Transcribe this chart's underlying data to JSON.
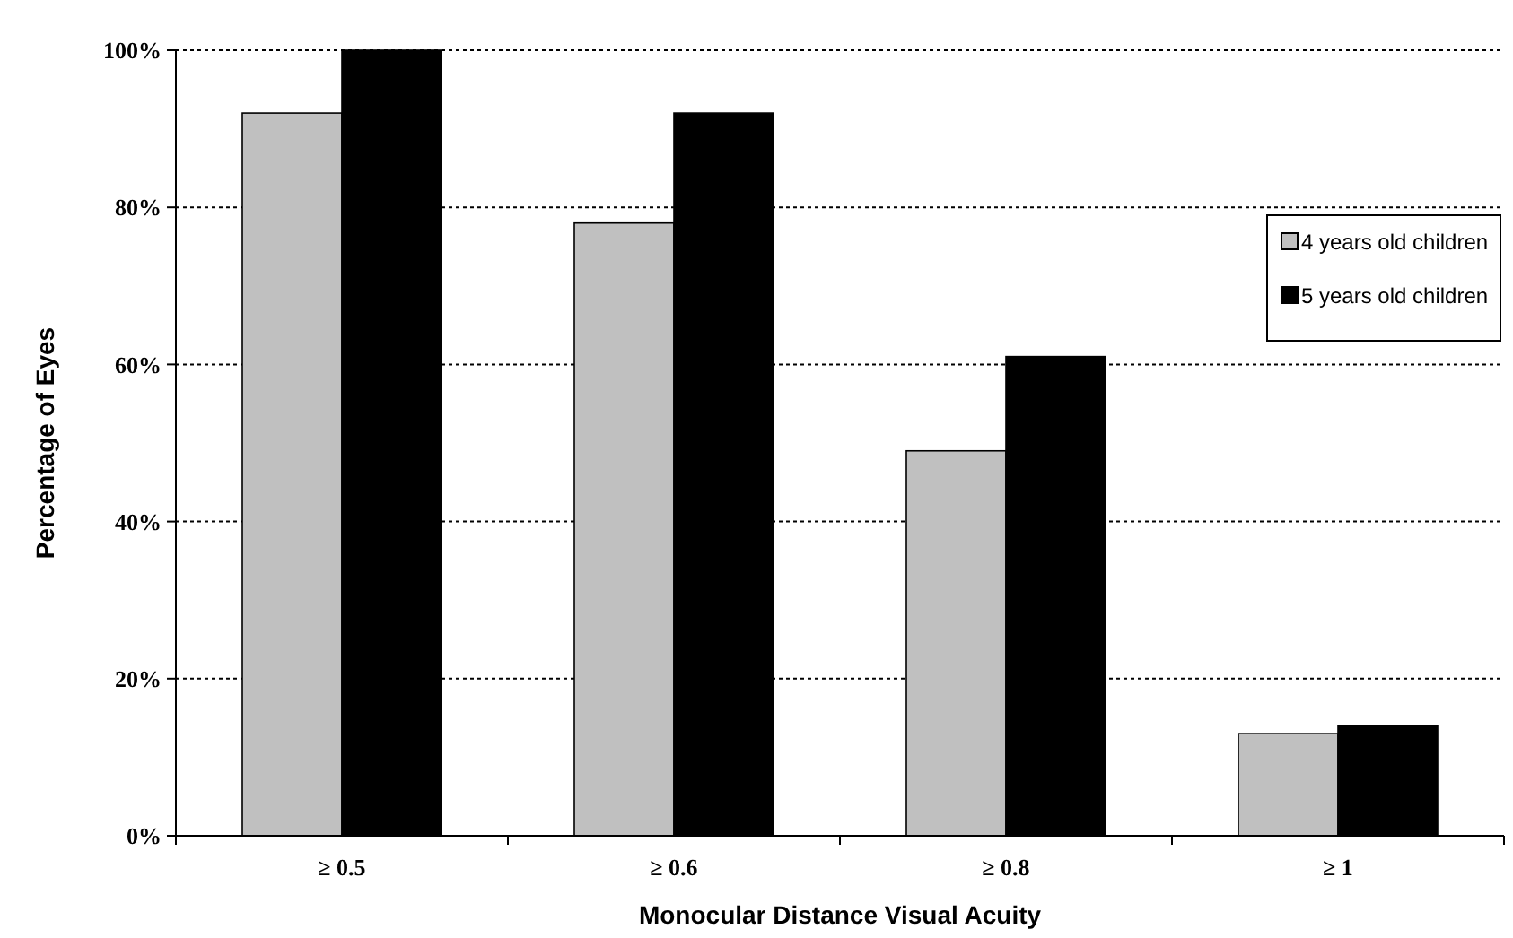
{
  "chart_data": {
    "type": "bar",
    "xlabel": "Monocular Distance Visual Acuity",
    "ylabel": "Percentage of Eyes",
    "categories": [
      "≥ 0.5",
      "≥ 0.6",
      "≥ 0.8",
      "≥ 1"
    ],
    "series": [
      {
        "name": "4 years old children",
        "color": "#c0c0c0",
        "values": [
          92,
          78,
          49,
          13
        ]
      },
      {
        "name": "5 years old children",
        "color": "#000000",
        "values": [
          100,
          92,
          61,
          14
        ]
      }
    ],
    "ylim": [
      0,
      100
    ],
    "yticks": [
      {
        "value": 0,
        "label": "0%"
      },
      {
        "value": 20,
        "label": "20%"
      },
      {
        "value": 40,
        "label": "40%"
      },
      {
        "value": 60,
        "label": "60%"
      },
      {
        "value": 80,
        "label": "80%"
      },
      {
        "value": 100,
        "label": "100%"
      }
    ],
    "grid": "y",
    "legend": "right"
  }
}
